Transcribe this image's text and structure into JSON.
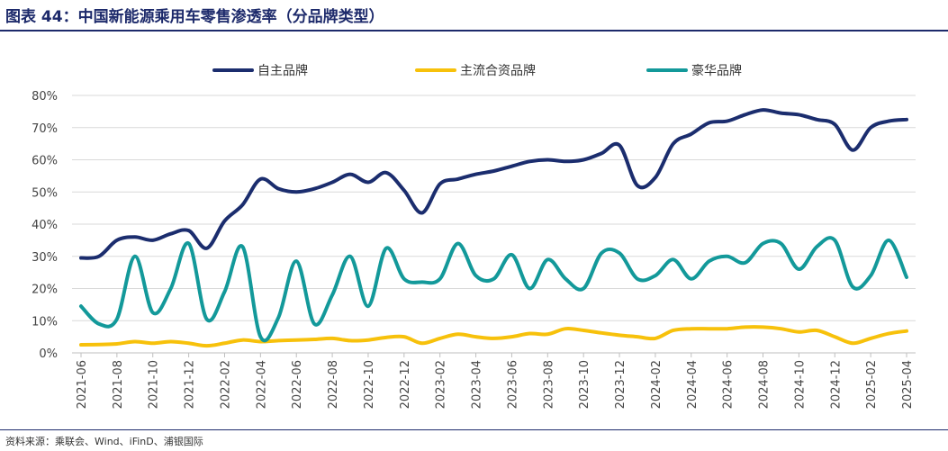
{
  "figure": {
    "title": "图表 44：中国新能源乘用车零售渗透率（分品牌类型）",
    "source": "资料来源：乘联会、Wind、iFinD、浦银国际"
  },
  "chart_data": {
    "type": "line",
    "title": "中国新能源乘用车零售渗透率（分品牌类型）",
    "xlabel": "",
    "ylabel": "",
    "ylim": [
      0,
      80
    ],
    "y_ticks": [
      "0%",
      "10%",
      "20%",
      "30%",
      "40%",
      "50%",
      "60%",
      "70%",
      "80%"
    ],
    "legend_position": "top",
    "x": [
      "2021-06",
      "2021-07",
      "2021-08",
      "2021-09",
      "2021-10",
      "2021-11",
      "2021-12",
      "2022-01",
      "2022-02",
      "2022-03",
      "2022-04",
      "2022-05",
      "2022-06",
      "2022-07",
      "2022-08",
      "2022-09",
      "2022-10",
      "2022-11",
      "2022-12",
      "2023-01",
      "2023-02",
      "2023-03",
      "2023-04",
      "2023-05",
      "2023-06",
      "2023-07",
      "2023-08",
      "2023-09",
      "2023-10",
      "2023-11",
      "2023-12",
      "2024-01",
      "2024-02",
      "2024-03",
      "2024-04",
      "2024-05",
      "2024-06",
      "2024-07",
      "2024-08",
      "2024-09",
      "2024-10",
      "2024-11",
      "2024-12",
      "2025-01",
      "2025-02",
      "2025-03",
      "2025-04"
    ],
    "x_tick_labels": [
      "2021-06",
      "2021-08",
      "2021-10",
      "2021-12",
      "2022-02",
      "2022-04",
      "2022-06",
      "2022-08",
      "2022-10",
      "2022-12",
      "2023-02",
      "2023-04",
      "2023-06",
      "2023-08",
      "2023-10",
      "2023-12",
      "2024-02",
      "2024-04",
      "2024-06",
      "2024-08",
      "2024-10",
      "2024-12",
      "2025-02",
      "2025-04"
    ],
    "series": [
      {
        "name": "自主品牌",
        "color": "#1b2d6e",
        "values": [
          29.5,
          30.0,
          35.0,
          36.0,
          35.0,
          37.0,
          38.0,
          32.5,
          41.0,
          46.0,
          54.0,
          51.0,
          50.0,
          51.0,
          53.0,
          55.5,
          53.0,
          56.0,
          50.5,
          43.5,
          52.5,
          54.0,
          55.5,
          56.5,
          58.0,
          59.5,
          60.0,
          59.5,
          60.0,
          62.0,
          64.5,
          52.0,
          54.5,
          65.0,
          68.0,
          71.5,
          72.0,
          74.0,
          75.5,
          74.5,
          74.0,
          72.5,
          71.0,
          63.0,
          70.0,
          72.0,
          72.5
        ]
      },
      {
        "name": "主流合资品牌",
        "color": "#f7c10b",
        "values": [
          2.5,
          2.6,
          2.8,
          3.5,
          3.0,
          3.5,
          3.0,
          2.2,
          3.0,
          4.0,
          3.5,
          3.8,
          4.0,
          4.2,
          4.5,
          3.8,
          4.0,
          4.8,
          5.0,
          3.0,
          4.5,
          5.8,
          5.0,
          4.5,
          5.0,
          6.0,
          5.8,
          7.5,
          7.0,
          6.2,
          5.5,
          5.0,
          4.5,
          7.0,
          7.5,
          7.5,
          7.5,
          8.0,
          8.0,
          7.5,
          6.5,
          7.0,
          5.0,
          3.0,
          4.5,
          6.0,
          6.8
        ]
      },
      {
        "name": "豪华品牌",
        "color": "#13999a",
        "values": [
          14.5,
          9.0,
          10.5,
          30.0,
          12.5,
          20.0,
          34.0,
          10.5,
          19.0,
          33.0,
          5.0,
          11.0,
          28.5,
          9.0,
          18.0,
          30.0,
          14.5,
          32.5,
          23.0,
          22.0,
          23.0,
          34.0,
          24.0,
          23.0,
          30.5,
          20.0,
          29.0,
          23.0,
          20.0,
          31.0,
          31.0,
          23.0,
          24.0,
          29.0,
          23.0,
          28.5,
          30.0,
          28.0,
          34.0,
          34.0,
          26.0,
          33.0,
          35.0,
          20.5,
          24.0,
          35.0,
          23.5
        ]
      }
    ]
  }
}
